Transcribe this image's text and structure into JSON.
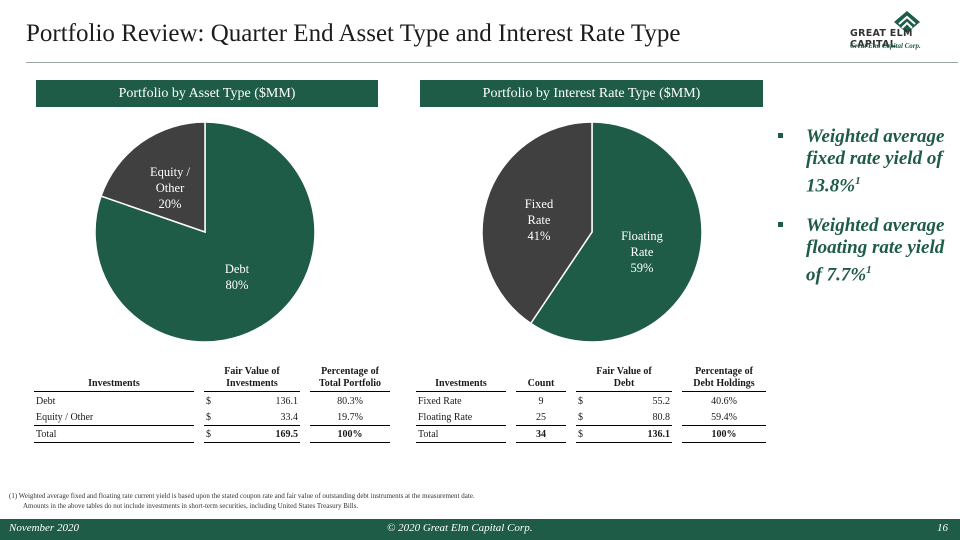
{
  "header": {
    "title": "Portfolio Review: Quarter End Asset Type and Interest Rate Type",
    "logo_text": "GREAT ELM  CAPITAL",
    "logo_sub": "Great Elm Capital Corp."
  },
  "sections": {
    "left_title": "Portfolio by Asset Type ($MM)",
    "right_title": "Portfolio by Interest Rate Type ($MM)"
  },
  "colors": {
    "green": "#1f5c48",
    "dark_gray": "#404040"
  },
  "chart_data": [
    {
      "type": "pie",
      "title": "Portfolio by Asset Type ($MM)",
      "slices": [
        {
          "label_line1": "Debt",
          "label_line2": "",
          "pct": "80%",
          "value": 80.3,
          "color": "#1f5c48"
        },
        {
          "label_line1": "Equity /",
          "label_line2": "Other",
          "pct": "20%",
          "value": 19.7,
          "color": "#404040"
        }
      ]
    },
    {
      "type": "pie",
      "title": "Portfolio by Interest Rate Type ($MM)",
      "slices": [
        {
          "label_line1": "Floating",
          "label_line2": "Rate",
          "pct": "59%",
          "value": 59.4,
          "color": "#1f5c48"
        },
        {
          "label_line1": "Fixed",
          "label_line2": "Rate",
          "pct": "41%",
          "value": 40.6,
          "color": "#404040"
        }
      ]
    }
  ],
  "bullets": [
    {
      "text": "Weighted average fixed rate yield of 13.8%",
      "sup": "1"
    },
    {
      "text": "Weighted average floating rate yield of 7.7%",
      "sup": "1"
    }
  ],
  "asset_table": {
    "headers": [
      "Investments",
      "Fair Value of",
      "Investments",
      "Percentage of",
      "Total Portfolio"
    ],
    "rows": [
      {
        "name": "Debt",
        "cur": "$",
        "value": "136.1",
        "pct": "80.3%"
      },
      {
        "name": "Equity / Other",
        "cur": "$",
        "value": "33.4",
        "pct": "19.7%"
      }
    ],
    "total": {
      "name": "Total",
      "cur": "$",
      "value": "169.5",
      "pct": "100%"
    }
  },
  "rate_table": {
    "headers": [
      "Investments",
      "Count",
      "Fair Value of",
      "Debt",
      "Percentage of",
      "Debt Holdings"
    ],
    "rows": [
      {
        "name": "Fixed Rate",
        "count": "9",
        "cur": "$",
        "value": "55.2",
        "pct": "40.6%"
      },
      {
        "name": "Floating Rate",
        "count": "25",
        "cur": "$",
        "value": "80.8",
        "pct": "59.4%"
      }
    ],
    "total": {
      "name": "Total",
      "count": "34",
      "cur": "$",
      "value": "136.1",
      "pct": "100%"
    }
  },
  "footnote": {
    "line1": "(1) Weighted average fixed and floating rate current yield is based upon the stated coupon rate and fair value of outstanding debt instruments at the measurement date.",
    "line2": "Amounts in the above tables do not include investments in short-term securities, including United States Treasury Bills."
  },
  "footer": {
    "date": "November 2020",
    "copyright": "© 2020 Great Elm Capital Corp.",
    "page": "16"
  }
}
